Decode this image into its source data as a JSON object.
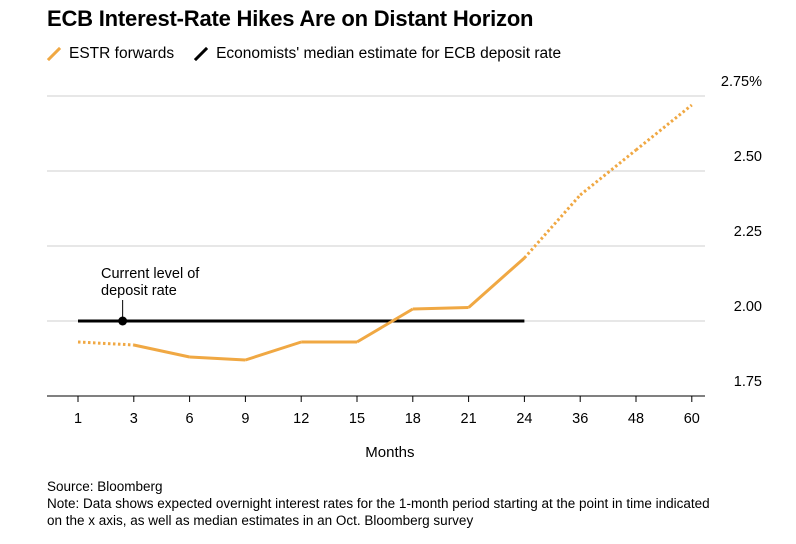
{
  "title": "ECB Interest-Rate Hikes Are on Distant Horizon",
  "source": "Source: Bloomberg",
  "note_line1": "Note: Data shows expected overnight interest rates for the 1-month period starting at the point in time indicated",
  "note_line2": "on the x axis, as well as median estimates in an Oct. Bloomberg survey",
  "colors": {
    "estr": "#f0a843",
    "economists": "#000000",
    "grid": "#cfcfcf"
  },
  "chart_data": {
    "type": "line",
    "xlabel": "Months",
    "ylabel": "",
    "categories": [
      "1",
      "3",
      "6",
      "9",
      "12",
      "15",
      "18",
      "21",
      "24",
      "36",
      "48",
      "60"
    ],
    "ylim": [
      1.75,
      2.75
    ],
    "y_ticks": [
      1.75,
      2.0,
      2.25,
      2.5,
      2.75
    ],
    "y_tick_labels": [
      "1.75",
      "2.00",
      "2.25",
      "2.50",
      "2.75%"
    ],
    "grid": true,
    "legend_position": "top-left",
    "series": [
      {
        "name": "ESTR forwards",
        "color": "#f0a843",
        "values": [
          1.93,
          1.92,
          1.88,
          1.87,
          1.93,
          1.93,
          2.04,
          2.045,
          2.21,
          2.42,
          2.57,
          2.72
        ],
        "dotted_segments": [
          [
            0,
            1
          ],
          [
            8,
            9
          ],
          [
            9,
            10
          ],
          [
            10,
            11
          ]
        ]
      },
      {
        "name": "Economists' median estimate for ECB deposit rate",
        "color": "#000000",
        "values": [
          2.0,
          2.0,
          2.0,
          2.0,
          2.0,
          2.0,
          2.0,
          2.0,
          2.0,
          null,
          null,
          null
        ]
      }
    ],
    "annotations": [
      {
        "text_line1": "Current level of",
        "text_line2": "deposit rate",
        "x_position_months": 2.6,
        "y": 2.0
      }
    ]
  }
}
